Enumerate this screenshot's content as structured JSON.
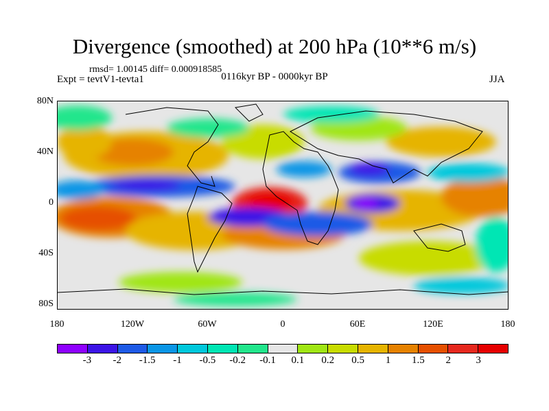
{
  "header": {
    "title": "Divergence (smoothed) at 200 hPa (10**6 m/s)",
    "stats": "rmsd= 1.00145 diff= 0.000918585",
    "experiment": "Expt = tevtV1-tevta1",
    "period": "0116kyr BP - 0000kyr BP",
    "season": "JJA"
  },
  "map": {
    "y_ticks": [
      "80N",
      "40N",
      "0",
      "40S",
      "80S"
    ],
    "x_ticks": [
      "180",
      "120W",
      "60W",
      "0",
      "60E",
      "120E",
      "180"
    ]
  },
  "colorbar": {
    "colors": [
      "#8f00ff",
      "#3c14e6",
      "#1e5ae6",
      "#0a96e6",
      "#00c8dc",
      "#00e6b4",
      "#22e68c",
      "#e6e6e6",
      "#a0e614",
      "#c8dc00",
      "#e6b400",
      "#e68200",
      "#e65000",
      "#e6281e",
      "#e60000"
    ],
    "labels": [
      "-3",
      "-2",
      "-1.5",
      "-1",
      "-0.5",
      "-0.2",
      "-0.1",
      "0.1",
      "0.2",
      "0.5",
      "1",
      "1.5",
      "2",
      "3"
    ]
  }
}
